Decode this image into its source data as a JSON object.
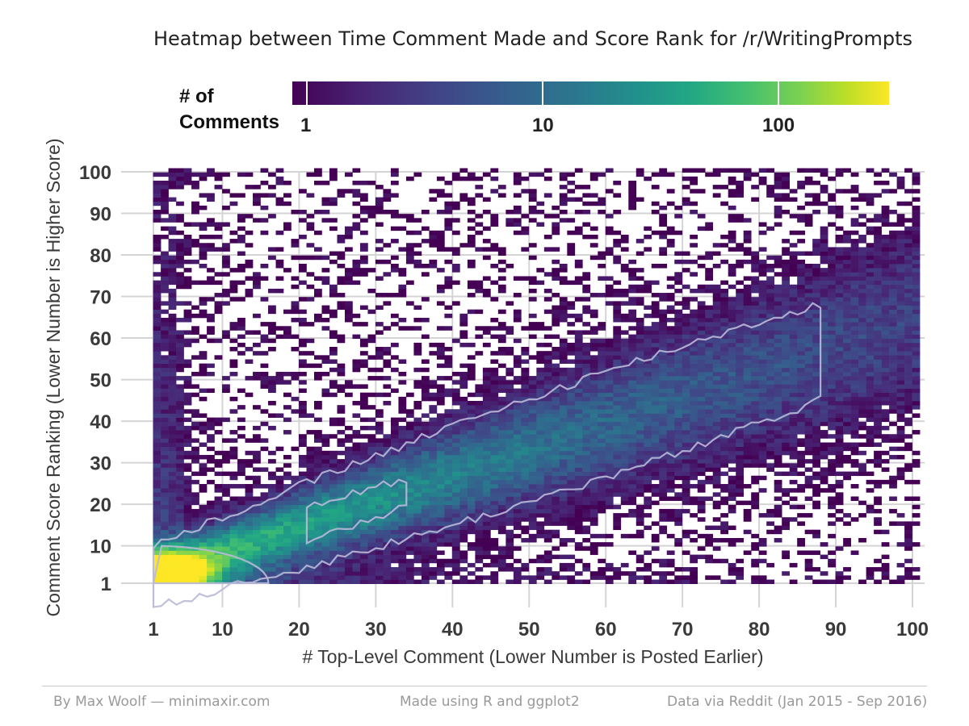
{
  "title": "Heatmap between Time Comment Made and Score Rank for /r/WritingPrompts",
  "legend": {
    "title_line1": "# of",
    "title_line2": "Comments",
    "ticks": [
      "1",
      "10",
      "100"
    ],
    "colors": [
      "#440154",
      "#482475",
      "#414487",
      "#355f8d",
      "#2a788e",
      "#21918c",
      "#22a884",
      "#44bf70",
      "#7ad151",
      "#bddf26",
      "#fde725"
    ]
  },
  "footer": {
    "left": "By Max Woolf — minimaxir.com",
    "center": "Made using R and ggplot2",
    "right": "Data via Reddit (Jan 2015 - Sep 2016)"
  },
  "chart_data": {
    "type": "heatmap",
    "title": "Heatmap between Time Comment Made and Score Rank for /r/WritingPrompts",
    "xlabel": "# Top-Level Comment (Lower Number is Posted Earlier)",
    "ylabel": "Comment Score Ranking (Lower Number is Higher Score)",
    "x_ticks": [
      "1",
      "10",
      "20",
      "30",
      "40",
      "50",
      "60",
      "70",
      "80",
      "90",
      "100"
    ],
    "y_ticks": [
      "1",
      "10",
      "20",
      "30",
      "40",
      "50",
      "60",
      "70",
      "80",
      "90",
      "100"
    ],
    "xlim": [
      1,
      100
    ],
    "ylim": [
      1,
      100
    ],
    "color_scale": "viridis, log10",
    "legend_title": "# of Comments",
    "legend_ticks": [
      1,
      10,
      100
    ],
    "legend_position": "top",
    "grid": true,
    "contours": true,
    "pattern": "highest counts at x=1-5, y=1-5 (~250 comments); bright diagonal ridge where score rank ≈ comment rank (~40-80 comments around x=20-35); counts decay to 1 away from diagonal and toward high ranks"
  }
}
